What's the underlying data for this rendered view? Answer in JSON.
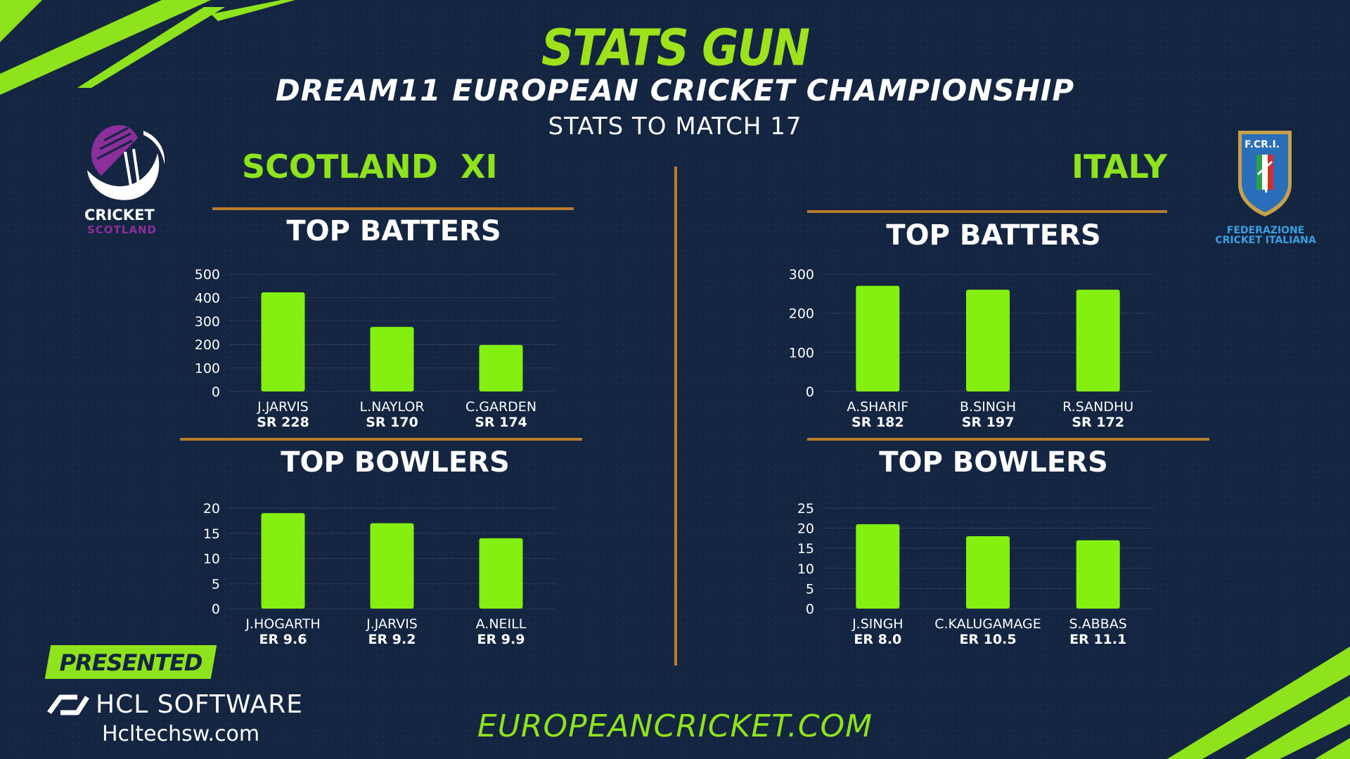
{
  "header": {
    "title": "STATS GUN",
    "competition": "DREAM11 EUROPEAN CRICKET CHAMPIONSHIP",
    "subtitle": "STATS TO MATCH 17"
  },
  "colors": {
    "background": "#132541",
    "accent": "#8ee31c",
    "bar": "#84f00f",
    "divider": "#b77d2c"
  },
  "teams": {
    "left": {
      "name": "SCOTLAND  XI",
      "logo_text": "CRICKET",
      "logo_subtext": "SCOTLAND"
    },
    "right": {
      "name": "ITALY",
      "logo_abbr": "F.CR.I.",
      "logo_line1": "FEDERAZIONE",
      "logo_line2": "CRICKET ITALIANA"
    }
  },
  "sections": {
    "batters": "TOP BATTERS",
    "bowlers": "TOP BOWLERS"
  },
  "footer": {
    "presented_by": "PRESENTED BY",
    "sponsor": "HCL SOFTWARE",
    "sponsor_url": "Hcltechsw.com",
    "website": "EUROPEANCRICKET.COM"
  },
  "chart_data": [
    {
      "id": "scotland-batters",
      "type": "bar",
      "categories": [
        "J.JARVIS",
        "L.NAYLOR",
        "C.GARDEN"
      ],
      "sublabels": [
        "SR 228",
        "SR 170",
        "SR 174"
      ],
      "values": [
        422,
        275,
        198
      ],
      "ylim": [
        0,
        500
      ],
      "yticks": [
        0,
        100,
        200,
        300,
        400,
        500
      ],
      "grid": true
    },
    {
      "id": "scotland-bowlers",
      "type": "bar",
      "categories": [
        "J.HOGARTH",
        "J.JARVIS",
        "A.NEILL"
      ],
      "sublabels": [
        "ER 9.6",
        "ER 9.2",
        "ER 9.9"
      ],
      "values": [
        19,
        17,
        14
      ],
      "ylim": [
        0,
        20
      ],
      "yticks": [
        0,
        5,
        10,
        15,
        20
      ],
      "grid": true
    },
    {
      "id": "italy-batters",
      "type": "bar",
      "categories": [
        "A.SHARIF",
        "B.SINGH",
        "R.SANDHU"
      ],
      "sublabels": [
        "SR 182",
        "SR 197",
        "SR 172"
      ],
      "values": [
        270,
        260,
        260
      ],
      "ylim": [
        0,
        300
      ],
      "yticks": [
        0,
        100,
        200,
        300
      ],
      "grid": true
    },
    {
      "id": "italy-bowlers",
      "type": "bar",
      "categories": [
        "J.SINGH",
        "C.KALUGAMAGE",
        "S.ABBAS"
      ],
      "sublabels": [
        "ER 8.0",
        "ER 10.5",
        "ER 11.1"
      ],
      "values": [
        21,
        18,
        17
      ],
      "ylim": [
        0,
        25
      ],
      "yticks": [
        0,
        5,
        10,
        15,
        20,
        25
      ],
      "grid": true
    }
  ]
}
